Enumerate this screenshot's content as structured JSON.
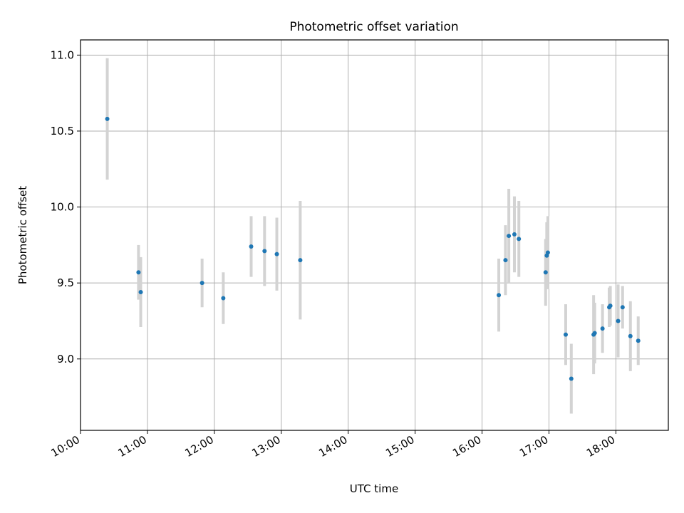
{
  "chart_data": {
    "type": "scatter",
    "title": "Photometric offset variation",
    "xlabel": "UTC time",
    "ylabel": "Photometric offset",
    "xlim": [
      "10:00",
      "18:47"
    ],
    "ylim": [
      8.53,
      11.1
    ],
    "xticks": [
      "10:00",
      "11:00",
      "12:00",
      "13:00",
      "14:00",
      "15:00",
      "16:00",
      "17:00",
      "18:00"
    ],
    "yticks": [
      "9.0",
      "9.5",
      "10.0",
      "10.5",
      "11.0"
    ],
    "grid": true,
    "colors": {
      "point": "#1f77b4",
      "errorbar": "#d3d3d3",
      "grid": "#b0b0b0",
      "axes": "#000000"
    },
    "points": [
      {
        "time": "10:24",
        "y": 10.58,
        "err": 0.4
      },
      {
        "time": "10:52",
        "y": 9.57,
        "err": 0.18
      },
      {
        "time": "10:54",
        "y": 9.44,
        "err": 0.23
      },
      {
        "time": "11:49",
        "y": 9.5,
        "err": 0.16
      },
      {
        "time": "12:08",
        "y": 9.4,
        "err": 0.17
      },
      {
        "time": "12:33",
        "y": 9.74,
        "err": 0.2
      },
      {
        "time": "12:45",
        "y": 9.71,
        "err": 0.23
      },
      {
        "time": "12:56",
        "y": 9.69,
        "err": 0.24
      },
      {
        "time": "13:17",
        "y": 9.65,
        "err": 0.39
      },
      {
        "time": "16:15",
        "y": 9.42,
        "err": 0.24
      },
      {
        "time": "16:21",
        "y": 9.65,
        "err": 0.23
      },
      {
        "time": "16:24",
        "y": 9.81,
        "err": 0.31
      },
      {
        "time": "16:29",
        "y": 9.82,
        "err": 0.25
      },
      {
        "time": "16:33",
        "y": 9.79,
        "err": 0.25
      },
      {
        "time": "16:57",
        "y": 9.57,
        "err": 0.22
      },
      {
        "time": "16:58",
        "y": 9.68,
        "err": 0.22
      },
      {
        "time": "16:59",
        "y": 9.7,
        "err": 0.24
      },
      {
        "time": "17:15",
        "y": 9.16,
        "err": 0.2
      },
      {
        "time": "17:20",
        "y": 8.87,
        "err": 0.23
      },
      {
        "time": "17:40",
        "y": 9.16,
        "err": 0.26
      },
      {
        "time": "17:41",
        "y": 9.17,
        "err": 0.2
      },
      {
        "time": "17:48",
        "y": 9.2,
        "err": 0.16
      },
      {
        "time": "17:54",
        "y": 9.34,
        "err": 0.13
      },
      {
        "time": "17:55",
        "y": 9.35,
        "err": 0.13
      },
      {
        "time": "18:02",
        "y": 9.25,
        "err": 0.24
      },
      {
        "time": "18:06",
        "y": 9.34,
        "err": 0.14
      },
      {
        "time": "18:13",
        "y": 9.15,
        "err": 0.23
      },
      {
        "time": "18:20",
        "y": 9.12,
        "err": 0.16
      }
    ]
  }
}
